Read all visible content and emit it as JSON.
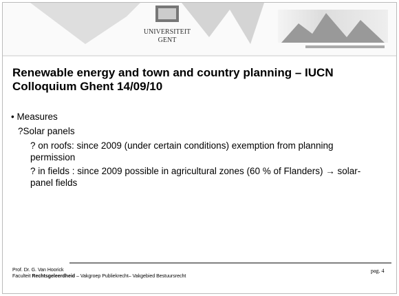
{
  "header": {
    "logo_line1": "UNIVERSITEIT",
    "logo_line2": "GENT"
  },
  "title": "Renewable energy and town and country planning – IUCN Colloquium Ghent 14/09/10",
  "bullets": [
    {
      "marker": "•",
      "text": "Measures"
    },
    {
      "marker": "?",
      "text": "Solar panels"
    },
    {
      "marker": "?",
      "text": "on roofs: since 2009 (under certain conditions) exemption from planning permission"
    },
    {
      "marker": "?",
      "text": "in fields : since 2009 possible in agricultural zones (60 % of Flanders) → solar-panel fields"
    }
  ],
  "footer": {
    "author": "Prof. Dr. G. Van Hoorick",
    "faculty_prefix": "Faculteit",
    "faculty_bold": "Rechtsgeleerdheid",
    "faculty_rest": "– Vakgroep Publiekrecht– Vakgebied Bestuursrecht",
    "page": "pag. 4"
  }
}
